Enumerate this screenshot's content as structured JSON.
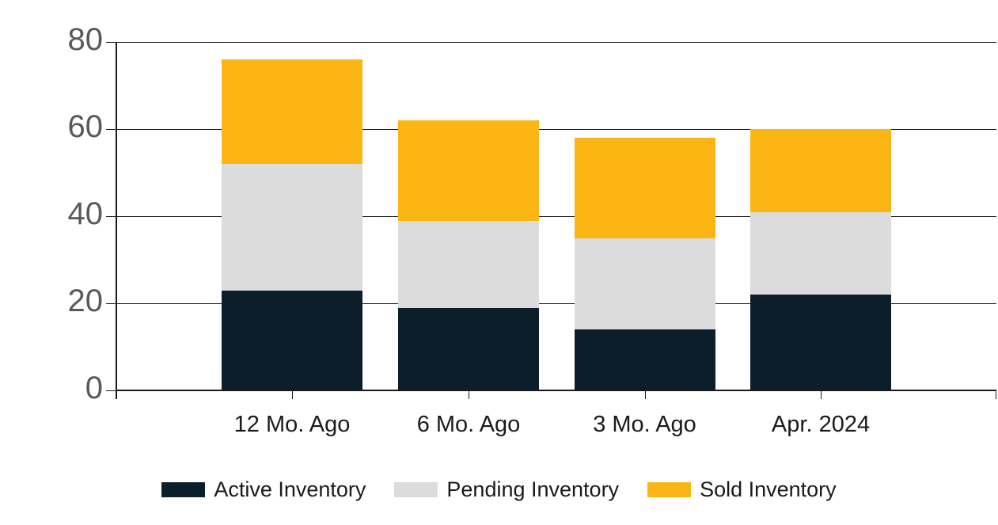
{
  "chart_data": {
    "type": "bar",
    "stacked": true,
    "title": "",
    "xlabel": "",
    "ylabel": "",
    "categories": [
      "12 Mo. Ago",
      "6 Mo. Ago",
      "3 Mo. Ago",
      "Apr. 2024"
    ],
    "series": [
      {
        "name": "Active Inventory",
        "color": "#0c1e2a",
        "values": [
          23,
          19,
          14,
          22
        ]
      },
      {
        "name": "Pending Inventory",
        "color": "#dcdcdc",
        "values": [
          29,
          20,
          21,
          19
        ]
      },
      {
        "name": "Sold Inventory",
        "color": "#fbb616",
        "values": [
          24,
          23,
          23,
          19
        ]
      }
    ],
    "stack_totals": [
      76,
      62,
      58,
      60
    ],
    "ylim": [
      0,
      80
    ],
    "yticks": [
      0,
      20,
      40,
      60,
      80
    ],
    "grid": "horizontal",
    "legend_position": "bottom"
  },
  "colors": {
    "background": "#ffffff",
    "axis": "#1a1a1a",
    "y_tick_label": "#595959",
    "x_tick_label": "#1a1a1a",
    "active_inventory": "#0c1e2a",
    "pending_inventory": "#dcdcdc",
    "sold_inventory": "#fbb616"
  }
}
